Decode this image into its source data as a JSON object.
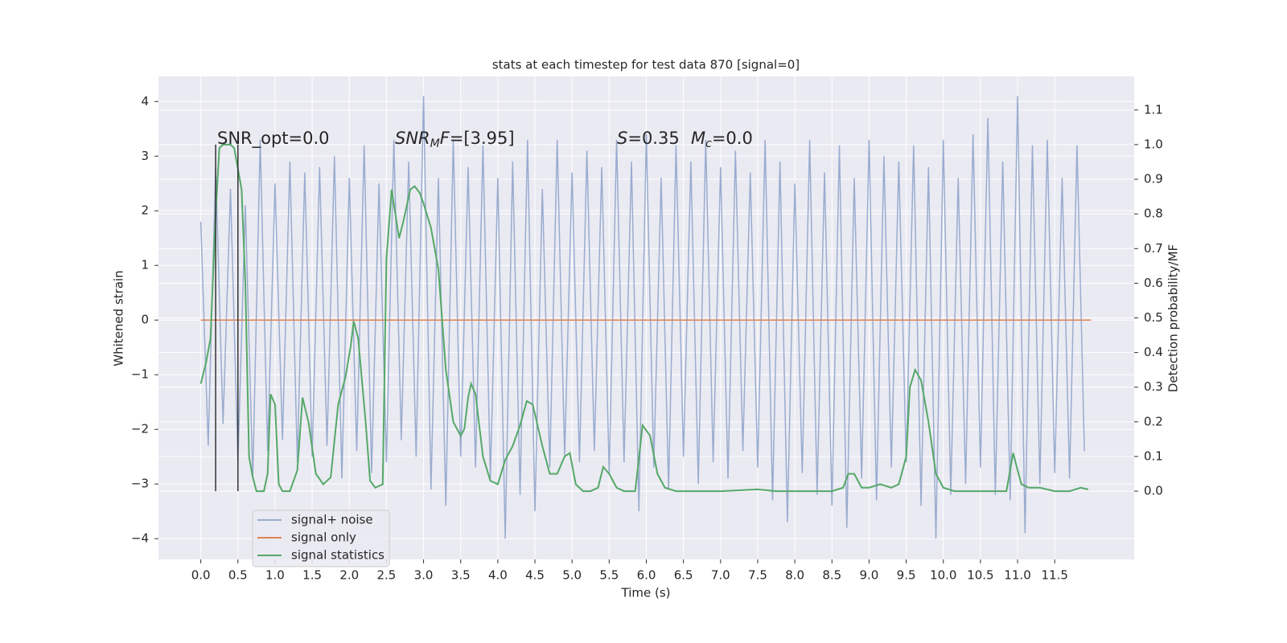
{
  "chart_data": {
    "type": "line",
    "title": "stats at each timestep for test data 870 [signal=0]",
    "xlabel": "Time (s)",
    "ylabel": "Whitened strain",
    "y2label": "Detection probability/MF",
    "background": "#eaeaf2",
    "grid": true,
    "legend": "lower left",
    "xlim": [
      -0.57,
      12.57
    ],
    "ylim": [
      -4.38,
      4.46
    ],
    "y2lim": [
      -0.197,
      1.197
    ],
    "xticks": [
      {
        "value": 0,
        "label": "0.0"
      },
      0.5,
      {
        "value": 1,
        "label": "1.0"
      },
      1.5,
      {
        "value": 2,
        "label": "2.0"
      },
      2.5,
      {
        "value": 3,
        "label": "3.0"
      },
      3.5,
      {
        "value": 4,
        "label": "4.0"
      },
      4.5,
      {
        "value": 5,
        "label": "5.0"
      },
      5.5,
      {
        "value": 6,
        "label": "6.0"
      },
      6.5,
      {
        "value": 7,
        "label": "7.0"
      },
      7.5,
      {
        "value": 8,
        "label": "8.0"
      },
      8.5,
      {
        "value": 9,
        "label": "9.0"
      },
      9.5,
      {
        "value": 10,
        "label": "10.0"
      },
      10.5,
      {
        "value": 11,
        "label": "11.0"
      },
      11.5
    ],
    "yticks": [
      {
        "value": -4,
        "label": "−4"
      },
      {
        "value": -3,
        "label": "−3"
      },
      {
        "value": -2,
        "label": "−2"
      },
      {
        "value": -1,
        "label": "−1"
      },
      0,
      1,
      2,
      3,
      4
    ],
    "y2ticks": [
      {
        "value": 0,
        "label": "0.0"
      },
      0.1,
      0.2,
      0.3,
      0.4,
      0.5,
      0.6,
      0.7,
      0.8,
      0.9,
      {
        "value": 1,
        "label": "1.0"
      },
      1.1
    ],
    "vlines": {
      "x": [
        0.2,
        0.5
      ],
      "axis": "y2",
      "ymin": 0,
      "ymax": 1,
      "color": "#333333"
    },
    "annotations": [
      [
        {
          "text": "SNR_opt=0.0"
        }
      ],
      [
        {
          "text": "SNR",
          "italic": true
        },
        {
          "text": "M",
          "italic": true,
          "sub": true
        },
        {
          "text": "F",
          "italic": true
        },
        {
          "text": "=[3.95]"
        }
      ],
      [
        {
          "text": "S",
          "italic": true
        },
        {
          "text": "=0.35"
        }
      ],
      [
        {
          "text": "M",
          "italic": true
        },
        {
          "text": "c",
          "italic": true,
          "sub": true
        },
        {
          "text": "=0.0"
        }
      ]
    ],
    "series": [
      {
        "name": "signal+ noise",
        "color": "#9aaccf",
        "axis": "y",
        "x": [
          0,
          0.1,
          0.2,
          0.3,
          0.4,
          0.5,
          0.6,
          0.7,
          0.8,
          0.9,
          1,
          1.1,
          1.2,
          1.3,
          1.4,
          1.5,
          1.6,
          1.7,
          1.8,
          1.9,
          2,
          2.1,
          2.2,
          2.3,
          2.4,
          2.5,
          2.6,
          2.7,
          2.8,
          2.9,
          3,
          3.1,
          3.2,
          3.3,
          3.4,
          3.5,
          3.6,
          3.7,
          3.8,
          3.9,
          4,
          4.1,
          4.2,
          4.3,
          4.4,
          4.5,
          4.6,
          4.7,
          4.8,
          4.9,
          5,
          5.1,
          5.2,
          5.3,
          5.4,
          5.5,
          5.6,
          5.7,
          5.8,
          5.9,
          6,
          6.1,
          6.2,
          6.3,
          6.4,
          6.5,
          6.6,
          6.7,
          6.8,
          6.9,
          7,
          7.1,
          7.2,
          7.3,
          7.4,
          7.5,
          7.6,
          7.7,
          7.8,
          7.9,
          8,
          8.1,
          8.2,
          8.3,
          8.4,
          8.5,
          8.6,
          8.7,
          8.8,
          8.9,
          9,
          9.1,
          9.2,
          9.3,
          9.4,
          9.5,
          9.6,
          9.7,
          9.8,
          9.9,
          10,
          10.1,
          10.2,
          10.3,
          10.4,
          10.5,
          10.6,
          10.7,
          10.8,
          10.9,
          11,
          11.1,
          11.2,
          11.3,
          11.4,
          11.5,
          11.6,
          11.7,
          11.8,
          11.9
        ],
        "values": [
          1.8,
          -2.3,
          2.8,
          -1.9,
          2.4,
          -2.6,
          2.1,
          -2.9,
          3.3,
          -2.4,
          2.5,
          -2.2,
          2.9,
          -2.6,
          2.7,
          -2.5,
          2.8,
          -2.3,
          3.0,
          -2.9,
          2.6,
          -2.4,
          3.2,
          -2.8,
          2.5,
          -2.6,
          3.3,
          -2.2,
          2.9,
          -2.5,
          4.1,
          -3.1,
          2.6,
          -3.4,
          3.3,
          -2.5,
          2.8,
          -2.7,
          3.2,
          -2.9,
          2.6,
          -4.0,
          2.9,
          -3.2,
          3.3,
          -3.5,
          2.4,
          -2.7,
          3.3,
          -2.5,
          2.7,
          -2.6,
          3.1,
          -2.4,
          2.8,
          -2.8,
          3.3,
          -2.6,
          2.9,
          -3.5,
          3.4,
          -2.7,
          2.6,
          -3.1,
          3.2,
          -2.5,
          2.9,
          -3.0,
          3.3,
          -2.6,
          2.8,
          -2.9,
          3.1,
          -2.4,
          2.7,
          -2.7,
          3.3,
          -3.3,
          2.9,
          -3.7,
          2.5,
          -2.8,
          3.3,
          -3.2,
          2.7,
          -3.4,
          3.2,
          -3.8,
          2.6,
          -2.9,
          3.3,
          -3.3,
          3.0,
          -2.7,
          2.9,
          -2.6,
          3.2,
          -3.4,
          2.8,
          -4.0,
          3.3,
          -3.2,
          2.6,
          -3.0,
          3.4,
          -2.7,
          3.7,
          -3.2,
          2.9,
          -3.3,
          4.1,
          -3.9,
          3.2,
          -3.0,
          3.3,
          -2.8,
          2.6,
          -2.9,
          3.2,
          -2.4
        ]
      },
      {
        "name": "signal only",
        "color": "#dd8452",
        "axis": "y",
        "x": [
          0,
          11.99
        ],
        "values": [
          0,
          0
        ]
      },
      {
        "name": "signal statistics",
        "color": "#55a868",
        "axis": "y2",
        "x": [
          0,
          0.07,
          0.13,
          0.2,
          0.25,
          0.3,
          0.4,
          0.45,
          0.5,
          0.55,
          0.6,
          0.65,
          0.7,
          0.75,
          0.85,
          0.9,
          0.94,
          1.0,
          1.05,
          1.1,
          1.2,
          1.3,
          1.37,
          1.45,
          1.55,
          1.65,
          1.75,
          1.85,
          1.95,
          2.02,
          2.06,
          2.12,
          2.22,
          2.28,
          2.35,
          2.45,
          2.5,
          2.57,
          2.67,
          2.73,
          2.82,
          2.88,
          2.95,
          3.0,
          3.1,
          3.2,
          3.3,
          3.4,
          3.5,
          3.55,
          3.6,
          3.64,
          3.7,
          3.8,
          3.9,
          4.0,
          4.1,
          4.2,
          4.3,
          4.39,
          4.47,
          4.6,
          4.7,
          4.8,
          4.9,
          4.97,
          5.05,
          5.15,
          5.25,
          5.35,
          5.42,
          5.5,
          5.6,
          5.7,
          5.85,
          5.95,
          6.05,
          6.15,
          6.25,
          6.4,
          7.0,
          7.5,
          7.75,
          8.5,
          8.65,
          8.72,
          8.8,
          8.9,
          9.0,
          9.15,
          9.3,
          9.4,
          9.5,
          9.55,
          9.62,
          9.7,
          9.8,
          9.9,
          10.0,
          10.15,
          10.5,
          10.85,
          10.94,
          11.05,
          11.15,
          11.3,
          11.5,
          11.7,
          11.85,
          11.95
        ],
        "values": [
          0.31,
          0.37,
          0.44,
          0.8,
          0.99,
          1.0,
          1.0,
          0.99,
          0.93,
          0.87,
          0.6,
          0.1,
          0.04,
          0.0,
          0.0,
          0.05,
          0.28,
          0.25,
          0.02,
          0.0,
          0.0,
          0.06,
          0.27,
          0.2,
          0.05,
          0.02,
          0.04,
          0.25,
          0.33,
          0.42,
          0.49,
          0.44,
          0.2,
          0.03,
          0.01,
          0.02,
          0.67,
          0.87,
          0.73,
          0.78,
          0.87,
          0.88,
          0.86,
          0.83,
          0.76,
          0.64,
          0.35,
          0.2,
          0.16,
          0.18,
          0.27,
          0.31,
          0.28,
          0.1,
          0.03,
          0.02,
          0.09,
          0.13,
          0.19,
          0.26,
          0.25,
          0.13,
          0.05,
          0.05,
          0.1,
          0.11,
          0.02,
          0.0,
          0.0,
          0.01,
          0.07,
          0.05,
          0.01,
          0.0,
          0.0,
          0.19,
          0.16,
          0.05,
          0.01,
          0.0,
          0.0,
          0.005,
          0.0,
          0.0,
          0.01,
          0.05,
          0.05,
          0.01,
          0.01,
          0.02,
          0.01,
          0.02,
          0.1,
          0.3,
          0.35,
          0.32,
          0.2,
          0.05,
          0.01,
          0.0,
          0.0,
          0.0,
          0.11,
          0.02,
          0.01,
          0.01,
          0.0,
          0.0,
          0.01,
          0.005
        ]
      }
    ]
  }
}
